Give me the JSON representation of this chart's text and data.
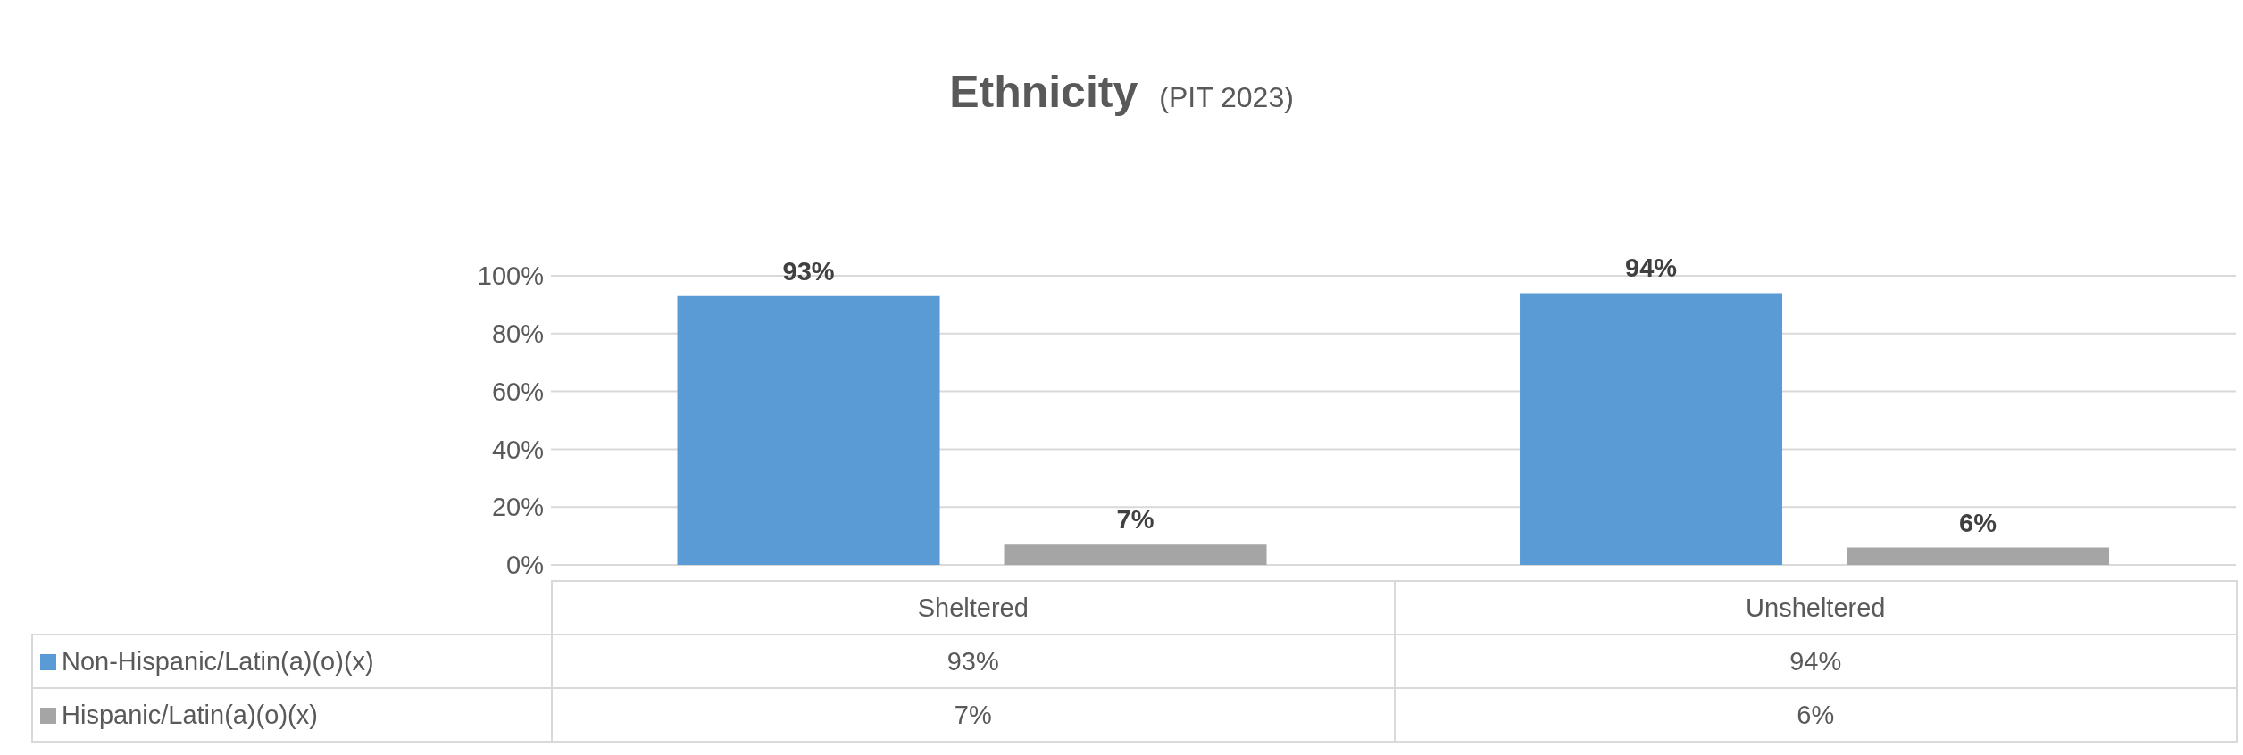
{
  "chart_data": {
    "type": "bar",
    "title": "Ethnicity",
    "subtitle": "(PIT 2023)",
    "categories": [
      "Sheltered",
      "Unsheltered"
    ],
    "series": [
      {
        "name": "Non-Hispanic/Latin(a)(o)(x)",
        "color": "#5b9bd5",
        "values": [
          93,
          94
        ],
        "value_labels": [
          "93%",
          "94%"
        ]
      },
      {
        "name": "Hispanic/Latin(a)(o)(x)",
        "color": "#a5a5a5",
        "values": [
          7,
          6
        ],
        "value_labels": [
          "7%",
          "6%"
        ]
      }
    ],
    "ylim": [
      0,
      100
    ],
    "yticks": [
      {
        "value": 0,
        "label": "0%"
      },
      {
        "value": 20,
        "label": "20%"
      },
      {
        "value": 40,
        "label": "40%"
      },
      {
        "value": 60,
        "label": "60%"
      },
      {
        "value": 80,
        "label": "80%"
      },
      {
        "value": 100,
        "label": "100%"
      }
    ],
    "grid": "y",
    "legend": "bottom"
  }
}
